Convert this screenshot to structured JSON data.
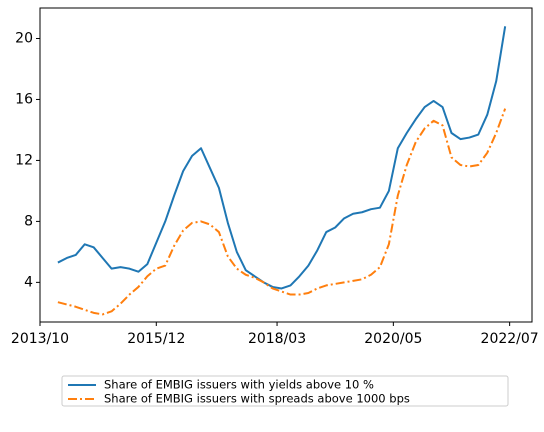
{
  "chart_data": {
    "type": "line",
    "x": [
      "2014/02",
      "2014/04",
      "2014/06",
      "2014/08",
      "2014/10",
      "2014/12",
      "2015/02",
      "2015/04",
      "2015/06",
      "2015/08",
      "2015/10",
      "2015/12",
      "2016/02",
      "2016/04",
      "2016/06",
      "2016/08",
      "2016/10",
      "2016/12",
      "2017/02",
      "2017/04",
      "2017/06",
      "2017/08",
      "2017/10",
      "2017/12",
      "2018/02",
      "2018/04",
      "2018/06",
      "2018/08",
      "2018/10",
      "2018/12",
      "2019/02",
      "2019/04",
      "2019/06",
      "2019/08",
      "2019/10",
      "2019/12",
      "2020/02",
      "2020/04",
      "2020/06",
      "2020/08",
      "2020/10",
      "2020/12",
      "2021/02",
      "2021/04",
      "2021/06",
      "2021/08",
      "2021/10",
      "2021/12",
      "2022/02",
      "2022/04",
      "2022/06"
    ],
    "series": [
      {
        "name": "Share of EMBIG issuers with yields above 10 %",
        "color": "#1f77b4",
        "style": "solid",
        "values": [
          5.3,
          5.6,
          5.8,
          6.5,
          6.3,
          5.6,
          4.9,
          5.0,
          4.9,
          4.7,
          5.2,
          6.6,
          8.0,
          9.7,
          11.3,
          12.3,
          12.8,
          11.5,
          10.2,
          7.9,
          6.0,
          4.8,
          4.4,
          4.0,
          3.7,
          3.6,
          3.8,
          4.4,
          5.1,
          6.1,
          7.3,
          7.6,
          8.2,
          8.5,
          8.6,
          8.8,
          8.9,
          10.0,
          12.8,
          13.8,
          14.7,
          15.5,
          15.9,
          15.5,
          13.8,
          13.4,
          13.5,
          13.7,
          15.0,
          17.2,
          20.8
        ]
      },
      {
        "name": "Share of EMBIG issuers with spreads above 1000 bps",
        "color": "#ff7f0e",
        "style": "dashdot",
        "values": [
          2.7,
          2.55,
          2.4,
          2.2,
          2.0,
          1.9,
          2.1,
          2.6,
          3.2,
          3.7,
          4.4,
          4.9,
          5.1,
          6.4,
          7.4,
          7.9,
          8.0,
          7.8,
          7.3,
          5.7,
          4.9,
          4.5,
          4.3,
          4.0,
          3.6,
          3.4,
          3.2,
          3.2,
          3.3,
          3.6,
          3.8,
          3.9,
          4.0,
          4.1,
          4.2,
          4.5,
          5.0,
          6.5,
          9.7,
          11.7,
          13.2,
          14.1,
          14.6,
          14.3,
          12.2,
          11.7,
          11.6,
          11.7,
          12.5,
          13.8,
          15.4
        ]
      }
    ],
    "xlim": [
      "2013/10",
      "2022/12"
    ],
    "xticks": [
      "2013/10",
      "2015/12",
      "2018/03",
      "2020/05",
      "2022/07"
    ],
    "ylim": [
      1.4,
      22
    ],
    "yticks": [
      4,
      8,
      12,
      16,
      20
    ],
    "legend": "lower center"
  }
}
